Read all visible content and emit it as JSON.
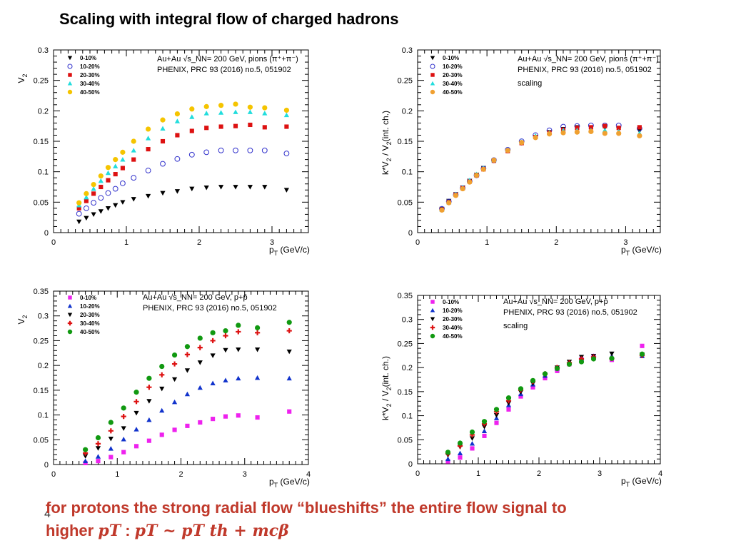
{
  "slide": {
    "title": "Scaling with integral flow of charged hadrons",
    "number": "4",
    "bottom_line1": "for protons  the strong  radial flow “blueshifts” the entire flow signal to",
    "bottom_line2_prefix": "higher ",
    "bottom_pt": "pT",
    "bottom_colon": " :  ",
    "bottom_formula": "pT ~ pT th + mcβ"
  },
  "chart_data": [
    {
      "type": "scatter",
      "title": "",
      "xlabel": "p_T (GeV/c)",
      "ylabel": "V_2",
      "xlim": [
        0,
        3.5
      ],
      "ylim": [
        0,
        0.3
      ],
      "xticks": [
        "0",
        "1",
        "2",
        "3"
      ],
      "yticks": [
        "0",
        "0.05",
        "0.1",
        "0.15",
        "0.2",
        "0.25",
        "0.3"
      ],
      "annotation": [
        "Au+Au √s_NN= 200 GeV, pions (π⁺+π⁻)",
        "PHENIX, PRC 93 (2016) no.5, 051902"
      ],
      "x": [
        0.35,
        0.45,
        0.55,
        0.65,
        0.75,
        0.85,
        0.95,
        1.1,
        1.3,
        1.5,
        1.7,
        1.9,
        2.1,
        2.3,
        2.5,
        2.7,
        2.9,
        3.2
      ],
      "series": [
        {
          "name": "0-10%",
          "marker": "tri-down",
          "color": "#000000",
          "values": [
            0.018,
            0.024,
            0.03,
            0.035,
            0.04,
            0.045,
            0.05,
            0.055,
            0.06,
            0.065,
            0.068,
            0.072,
            0.074,
            0.075,
            0.075,
            0.075,
            0.075,
            0.07
          ]
        },
        {
          "name": "10-20%",
          "marker": "open-circle",
          "color": "#3333cc",
          "values": [
            0.031,
            0.04,
            0.049,
            0.057,
            0.065,
            0.072,
            0.081,
            0.09,
            0.102,
            0.113,
            0.121,
            0.128,
            0.132,
            0.135,
            0.135,
            0.135,
            0.135,
            0.13
          ]
        },
        {
          "name": "20-30%",
          "marker": "square",
          "color": "#dd1111",
          "values": [
            0.04,
            0.052,
            0.064,
            0.075,
            0.086,
            0.096,
            0.106,
            0.12,
            0.137,
            0.15,
            0.16,
            0.167,
            0.172,
            0.174,
            0.175,
            0.177,
            0.173,
            0.174
          ]
        },
        {
          "name": "30-40%",
          "marker": "tri-up",
          "color": "#22dddd",
          "values": [
            0.045,
            0.058,
            0.072,
            0.085,
            0.098,
            0.109,
            0.12,
            0.135,
            0.155,
            0.171,
            0.183,
            0.19,
            0.196,
            0.197,
            0.198,
            0.198,
            0.196,
            0.193
          ]
        },
        {
          "name": "40-50%",
          "marker": "circle",
          "color": "#f5c400",
          "values": [
            0.049,
            0.064,
            0.079,
            0.093,
            0.107,
            0.12,
            0.132,
            0.15,
            0.17,
            0.185,
            0.195,
            0.203,
            0.207,
            0.209,
            0.211,
            0.206,
            0.205,
            0.201
          ]
        }
      ]
    },
    {
      "type": "scatter",
      "title": "",
      "xlabel": "p_T (GeV/c)",
      "ylabel": "k*V_2 / V_2(int. ch.)",
      "xlim": [
        0,
        3.5
      ],
      "ylim": [
        0,
        0.3
      ],
      "xticks": [
        "0",
        "1",
        "2",
        "3"
      ],
      "yticks": [
        "0",
        "0.05",
        "0.1",
        "0.15",
        "0.2",
        "0.25",
        "0.3"
      ],
      "annotation": [
        "Au+Au √s_NN= 200 GeV, pions (π⁺+π⁻)",
        "PHENIX, PRC 93 (2016) no.5, 051902",
        "scaling"
      ],
      "x": [
        0.35,
        0.45,
        0.55,
        0.65,
        0.75,
        0.85,
        0.95,
        1.1,
        1.3,
        1.5,
        1.7,
        1.9,
        2.1,
        2.3,
        2.5,
        2.7,
        2.9,
        3.2
      ],
      "series": [
        {
          "name": "0-10%",
          "marker": "tri-down",
          "color": "#000000",
          "values": [
            0.039,
            0.052,
            0.063,
            0.074,
            0.085,
            0.095,
            0.106,
            0.118,
            0.134,
            0.147,
            0.157,
            0.165,
            0.17,
            0.173,
            0.173,
            0.172,
            0.17,
            0.167
          ]
        },
        {
          "name": "10-20%",
          "marker": "open-circle",
          "color": "#3333cc",
          "values": [
            0.039,
            0.051,
            0.062,
            0.073,
            0.084,
            0.094,
            0.105,
            0.119,
            0.136,
            0.15,
            0.16,
            0.168,
            0.174,
            0.175,
            0.176,
            0.176,
            0.176,
            0.171
          ]
        },
        {
          "name": "20-30%",
          "marker": "square",
          "color": "#dd1111",
          "values": [
            0.038,
            0.05,
            0.062,
            0.073,
            0.084,
            0.094,
            0.104,
            0.118,
            0.134,
            0.147,
            0.157,
            0.164,
            0.169,
            0.172,
            0.173,
            0.175,
            0.172,
            0.173
          ]
        },
        {
          "name": "30-40%",
          "marker": "tri-up",
          "color": "#22dddd",
          "values": [
            0.038,
            0.05,
            0.063,
            0.074,
            0.086,
            0.096,
            0.106,
            0.119,
            0.136,
            0.149,
            0.159,
            0.164,
            0.168,
            0.168,
            0.168,
            0.168,
            0.166,
            0.163
          ]
        },
        {
          "name": "40-50%",
          "marker": "circle",
          "color": "#f0a030",
          "values": [
            0.037,
            0.049,
            0.061,
            0.072,
            0.083,
            0.094,
            0.104,
            0.119,
            0.135,
            0.148,
            0.156,
            0.162,
            0.164,
            0.165,
            0.166,
            0.163,
            0.163,
            0.159
          ]
        }
      ]
    },
    {
      "type": "scatter",
      "title": "",
      "xlabel": "p_T (GeV/c)",
      "ylabel": "V_2",
      "xlim": [
        0,
        4
      ],
      "ylim": [
        0,
        0.35
      ],
      "xticks": [
        "0",
        "1",
        "2",
        "3",
        "4"
      ],
      "yticks": [
        "0",
        "0.05",
        "0.1",
        "0.15",
        "0.2",
        "0.25",
        "0.3",
        "0.35"
      ],
      "annotation": [
        "Au+Au √s_NN= 200 GeV, p+p̄",
        "PHENIX, PRC 93 (2016) no.5, 051902"
      ],
      "x": [
        0.5,
        0.7,
        0.9,
        1.1,
        1.3,
        1.5,
        1.7,
        1.9,
        2.1,
        2.3,
        2.5,
        2.7,
        2.9,
        3.2,
        3.7
      ],
      "series": [
        {
          "name": "0-10%",
          "marker": "square",
          "color": "#ee22ee",
          "values": [
            0.003,
            0.007,
            0.015,
            0.025,
            0.037,
            0.048,
            0.06,
            0.07,
            0.078,
            0.085,
            0.092,
            0.097,
            0.099,
            0.095,
            0.107
          ]
        },
        {
          "name": "10-20%",
          "marker": "tri-up",
          "color": "#1133cc",
          "values": [
            0.007,
            0.016,
            0.032,
            0.051,
            0.071,
            0.09,
            0.109,
            0.126,
            0.142,
            0.155,
            0.164,
            0.17,
            0.174,
            0.175,
            0.174
          ]
        },
        {
          "name": "20-30%",
          "marker": "tri-down",
          "color": "#000000",
          "values": [
            0.017,
            0.033,
            0.052,
            0.073,
            0.104,
            0.128,
            0.153,
            0.172,
            0.19,
            0.206,
            0.22,
            0.231,
            0.232,
            0.232,
            0.228
          ]
        },
        {
          "name": "30-40%",
          "marker": "cross",
          "color": "#dd1111",
          "values": [
            0.023,
            0.042,
            0.068,
            0.097,
            0.127,
            0.156,
            0.181,
            0.203,
            0.222,
            0.236,
            0.25,
            0.26,
            0.268,
            0.266,
            0.27
          ]
        },
        {
          "name": "40-50%",
          "marker": "circle",
          "color": "#119911",
          "values": [
            0.03,
            0.054,
            0.085,
            0.114,
            0.146,
            0.174,
            0.198,
            0.221,
            0.238,
            0.255,
            0.266,
            0.27,
            0.281,
            0.276,
            0.287
          ]
        }
      ]
    },
    {
      "type": "scatter",
      "title": "",
      "xlabel": "p_T (GeV/c)",
      "ylabel": "k*V_2 / V_2(int. ch.)",
      "xlim": [
        0,
        4
      ],
      "ylim": [
        0,
        0.35
      ],
      "xticks": [
        "0",
        "1",
        "2",
        "3",
        "4"
      ],
      "yticks": [
        "0",
        "0.05",
        "0.1",
        "0.15",
        "0.2",
        "0.25",
        "0.3",
        "0.35"
      ],
      "annotation": [
        "Au+Au √s_NN= 200 GeV, p+p̄",
        "PHENIX, PRC 93 (2016) no.5, 051902",
        "scaling"
      ],
      "x": [
        0.5,
        0.7,
        0.9,
        1.1,
        1.3,
        1.5,
        1.7,
        1.9,
        2.1,
        2.3,
        2.5,
        2.7,
        2.9,
        3.2,
        3.7
      ],
      "series": [
        {
          "name": "0-10%",
          "marker": "square",
          "color": "#ee22ee",
          "values": [
            0.005,
            0.013,
            0.032,
            0.058,
            0.085,
            0.113,
            0.14,
            0.159,
            0.178,
            0.193,
            0.207,
            0.217,
            0.224,
            0.216,
            0.245
          ]
        },
        {
          "name": "10-20%",
          "marker": "tri-up",
          "color": "#1133cc",
          "values": [
            0.01,
            0.022,
            0.042,
            0.068,
            0.095,
            0.122,
            0.145,
            0.165,
            0.183,
            0.198,
            0.21,
            0.219,
            0.224,
            0.224,
            0.224
          ]
        },
        {
          "name": "20-30%",
          "marker": "tri-down",
          "color": "#000000",
          "values": [
            0.018,
            0.035,
            0.053,
            0.077,
            0.101,
            0.126,
            0.149,
            0.167,
            0.185,
            0.2,
            0.212,
            0.222,
            0.224,
            0.229,
            0.227
          ]
        },
        {
          "name": "30-40%",
          "marker": "cross",
          "color": "#dd1111",
          "values": [
            0.021,
            0.037,
            0.06,
            0.083,
            0.108,
            0.131,
            0.153,
            0.171,
            0.187,
            0.2,
            0.21,
            0.218,
            0.222,
            0.219,
            0.225
          ]
        },
        {
          "name": "40-50%",
          "marker": "circle",
          "color": "#119911",
          "values": [
            0.024,
            0.043,
            0.066,
            0.088,
            0.113,
            0.137,
            0.156,
            0.173,
            0.187,
            0.198,
            0.207,
            0.212,
            0.218,
            0.219,
            0.228
          ]
        }
      ]
    }
  ]
}
